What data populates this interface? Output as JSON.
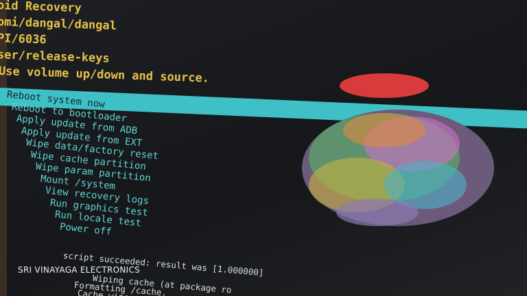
{
  "header": {
    "lines": [
      "oid Recovery",
      "omi/dangal/dangal",
      "PI/6036",
      "ser/release-keys",
      "Use volume up/down and source."
    ]
  },
  "menu": {
    "items": [
      "Reboot system now",
      "Reboot to bootloader",
      "Apply update from ADB",
      "Apply update from EXT",
      "Wipe data/factory reset",
      "Wipe cache partition",
      "Wipe param partition",
      "Mount /system",
      "View recovery logs",
      "Run graphics test",
      "Run locale test",
      "Power off"
    ]
  },
  "log": {
    "lines": [
      "script succeeded: result was [1.000000]",
      "Wiping cache (at package ro",
      "Formatting /cache.",
      "Cache wipe"
    ]
  },
  "watermark": "SRI VINAYAGA ELECTRONICS"
}
